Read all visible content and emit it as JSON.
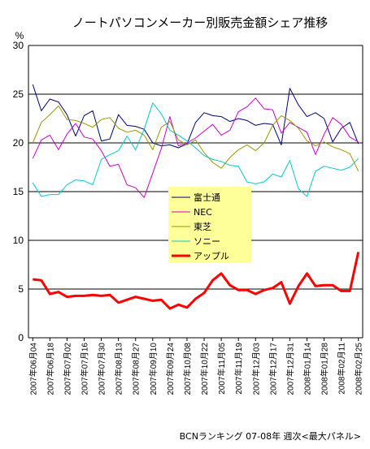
{
  "chart_data": {
    "type": "line",
    "title": "ノートパソコンメーカー別販売金額シェア推移",
    "ylabel": "%",
    "ylim": [
      0,
      30
    ],
    "yticks": [
      0,
      5,
      10,
      15,
      20,
      25,
      30
    ],
    "grid": true,
    "legend_placement": "center",
    "x": [
      "2007年06月04",
      "2007年06月11",
      "2007年06月18",
      "2007年06月25",
      "2007年07月02",
      "2007年07月09",
      "2007年07月16",
      "2007年07月23",
      "2007年07月30",
      "2007年08月06",
      "2007年08月13",
      "2007年08月20",
      "2007年08月27",
      "2007年09月03",
      "2007年09月10",
      "2007年09月17",
      "2007年09月24",
      "2007年10月01",
      "2007年10月08",
      "2007年10月15",
      "2007年10月22",
      "2007年10月29",
      "2007年11月05",
      "2007年11月12",
      "2007年11月19",
      "2007年11月26",
      "2007年12月03",
      "2007年12月10",
      "2007年12月17",
      "2007年12月24",
      "2007年12月31",
      "2008年01月07",
      "2008年01月14",
      "2008年01月21",
      "2008年01月28",
      "2008年02月04",
      "2008年02月11",
      "2008年02月18",
      "2008年02月25"
    ],
    "xtick_labels": [
      "2007年06月04",
      "2007年06月18",
      "2007年07月02",
      "2007年07月16",
      "2007年07月30",
      "2007年08月13",
      "2007年08月27",
      "2007年09月10",
      "2007年09月24",
      "2007年10月08",
      "2007年10月22",
      "2007年11月05",
      "2007年11月19",
      "2007年12月03",
      "2007年12月17",
      "2007年12月31",
      "2008年01月14",
      "2008年01月28",
      "2008年02月11",
      "2008年02月25"
    ],
    "series": [
      {
        "name": "富士通",
        "color": "#000080",
        "width": 1,
        "values": [
          26.0,
          23.3,
          24.5,
          24.2,
          22.9,
          20.7,
          22.8,
          23.3,
          20.2,
          20.4,
          22.9,
          21.8,
          21.7,
          21.4,
          20.0,
          19.7,
          19.8,
          19.5,
          19.9,
          22.1,
          23.1,
          22.8,
          22.7,
          22.2,
          22.5,
          22.3,
          21.8,
          22.0,
          21.9,
          19.8,
          25.6,
          23.9,
          22.7,
          23.1,
          22.5,
          20.1,
          21.5,
          22.1,
          19.9
        ]
      },
      {
        "name": "NEC",
        "color": "#cc00cc",
        "width": 1,
        "values": [
          18.4,
          20.3,
          20.8,
          19.3,
          20.9,
          22.0,
          20.6,
          20.4,
          19.2,
          17.6,
          17.8,
          15.7,
          15.4,
          14.4,
          16.9,
          19.4,
          22.7,
          19.7,
          20.0,
          20.5,
          21.2,
          21.9,
          20.8,
          21.3,
          23.2,
          23.7,
          24.6,
          23.5,
          23.4,
          21.0,
          22.1,
          21.6,
          21.1,
          18.8,
          20.9,
          22.6,
          21.9,
          20.6,
          20.1
        ]
      },
      {
        "name": "東芝",
        "color": "#999900",
        "width": 1,
        "values": [
          20.0,
          22.1,
          22.9,
          23.8,
          22.4,
          22.3,
          22.0,
          21.6,
          22.4,
          22.6,
          21.5,
          21.1,
          21.3,
          20.8,
          19.3,
          21.6,
          22.2,
          20.3,
          19.8,
          20.3,
          19.0,
          18.0,
          17.4,
          18.5,
          19.3,
          19.8,
          19.2,
          20.0,
          21.8,
          22.8,
          22.3,
          21.5,
          20.2,
          19.7,
          20.1,
          19.6,
          19.3,
          18.9,
          17.1
        ]
      },
      {
        "name": "ソニー",
        "color": "#00cccc",
        "width": 1,
        "values": [
          15.9,
          14.5,
          14.7,
          14.7,
          15.7,
          16.2,
          16.1,
          15.7,
          18.3,
          18.8,
          19.2,
          20.7,
          19.3,
          21.4,
          24.1,
          23.0,
          21.3,
          20.8,
          20.2,
          19.5,
          18.7,
          18.3,
          18.1,
          17.7,
          17.6,
          16.0,
          15.8,
          16.0,
          16.8,
          16.5,
          18.2,
          15.3,
          14.5,
          17.1,
          17.6,
          17.4,
          17.2,
          17.5,
          18.4
        ]
      },
      {
        "name": "アップル",
        "color": "#ff0000",
        "width": 3,
        "values": [
          6.0,
          5.9,
          4.5,
          4.7,
          4.2,
          4.3,
          4.3,
          4.4,
          4.3,
          4.4,
          3.6,
          3.9,
          4.2,
          4.0,
          3.8,
          3.9,
          3.0,
          3.4,
          3.1,
          4.0,
          4.6,
          5.9,
          6.6,
          5.4,
          4.9,
          4.9,
          4.5,
          4.9,
          5.1,
          5.7,
          3.5,
          5.3,
          6.6,
          5.3,
          5.4,
          5.4,
          4.8,
          4.8,
          8.8
        ]
      }
    ],
    "legend": [
      "富士通",
      "NEC",
      "東芝",
      "ソニー",
      "アップル"
    ],
    "footer": "BCNランキング 07-08年 週次<最大パネル>"
  },
  "colors": {
    "legend_bg": "#ffff99",
    "plot_bg": "#ffffff",
    "grid": "#000000"
  }
}
